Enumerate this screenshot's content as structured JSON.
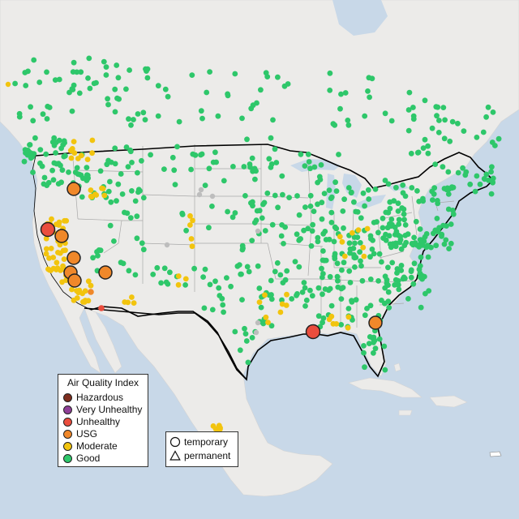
{
  "legend": {
    "aqi_title": "Air Quality Index",
    "aqi_categories": [
      {
        "label": "Hazardous",
        "color": "#7e2e1e"
      },
      {
        "label": "Very Unhealthy",
        "color": "#8f3f97"
      },
      {
        "label": "Unhealthy",
        "color": "#ea4d3d"
      },
      {
        "label": "USG",
        "color": "#f0882a"
      },
      {
        "label": "Moderate",
        "color": "#f2c40e"
      },
      {
        "label": "Good",
        "color": "#2ec76a"
      }
    ],
    "monitor_types": [
      {
        "label": "temporary",
        "shape": "circle-icon"
      },
      {
        "label": "permanent",
        "shape": "triangle-icon"
      }
    ]
  },
  "colors": {
    "water": "#c8d8e8",
    "land": "#ededeb",
    "usa_land": "#f1f0ee",
    "border": "#000000",
    "state_lines": "#a8a8a8"
  }
}
